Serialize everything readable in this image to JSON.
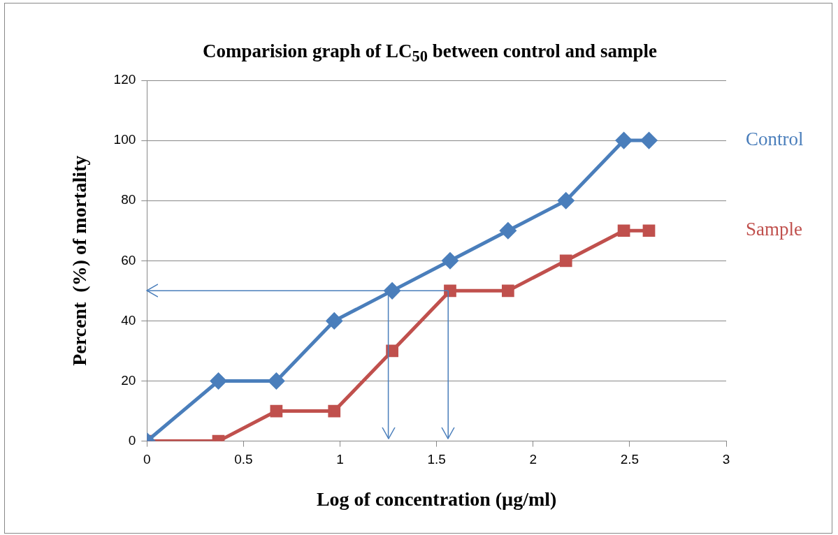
{
  "chart_data": {
    "type": "line",
    "title": "Comparision graph of LC$_{50}$ between control and sample",
    "xlabel": "Log of concentration (µg/ml)",
    "ylabel": "Percent  (%) of mortality",
    "xlim": [
      0,
      3
    ],
    "xticks": [
      0,
      0.5,
      1,
      1.5,
      2,
      2.5,
      3
    ],
    "ylim": [
      0,
      120
    ],
    "yticks": [
      0,
      20,
      40,
      60,
      80,
      100,
      120
    ],
    "grid": "y",
    "legend": false,
    "line_style": "solid",
    "series": [
      {
        "name": "Control",
        "color": "#4a7ebb",
        "marker": "diamond",
        "x": [
          0,
          0.37,
          0.67,
          0.97,
          1.27,
          1.57,
          1.87,
          2.17,
          2.47,
          2.6
        ],
        "values": [
          0,
          20,
          20,
          40,
          50,
          60,
          70,
          80,
          100,
          100
        ]
      },
      {
        "name": "Sample",
        "color": "#c0504d",
        "marker": "square",
        "x": [
          0,
          0.37,
          0.67,
          0.97,
          1.27,
          1.57,
          1.87,
          2.17,
          2.47,
          2.6
        ],
        "values": [
          0,
          0,
          10,
          10,
          30,
          50,
          50,
          60,
          70,
          70
        ]
      }
    ],
    "ref_lines": [
      {
        "axis": "y",
        "value": 50,
        "color": "#4a7ebb"
      },
      {
        "axis": "x",
        "value": 1.25,
        "color": "#4a7ebb"
      },
      {
        "axis": "x",
        "value": 1.56,
        "color": "#4a7ebb"
      }
    ]
  }
}
